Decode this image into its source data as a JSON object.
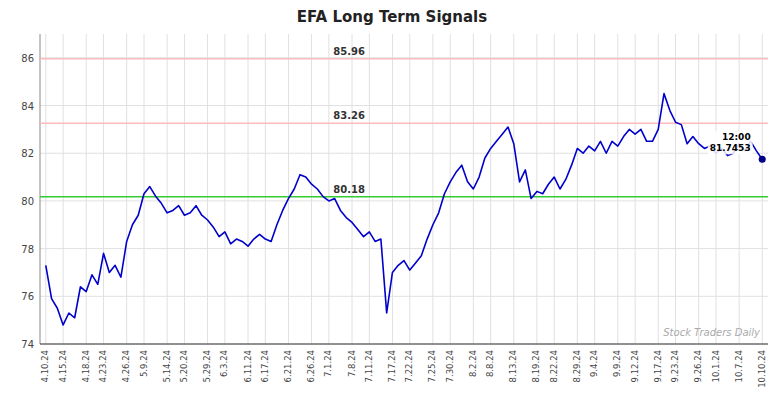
{
  "chart_data": {
    "type": "line",
    "title": "EFA Long Term Signals",
    "color": "#0000cc",
    "grid": true,
    "ylim": [
      74,
      87
    ],
    "yticks": [
      74,
      76,
      78,
      80,
      82,
      84,
      86
    ],
    "categories": [
      "4.10.24",
      null,
      null,
      "4.15.24",
      null,
      null,
      null,
      "4.18.24",
      null,
      null,
      "4.23.24",
      null,
      null,
      null,
      "4.26.24",
      null,
      null,
      "5.9.24",
      null,
      null,
      null,
      "5.14.24",
      null,
      null,
      "5.20.24",
      null,
      null,
      null,
      "5.29.24",
      null,
      null,
      "6.3.24",
      null,
      null,
      null,
      "6.11.24",
      null,
      null,
      "6.17.24",
      null,
      null,
      null,
      "6.21.24",
      null,
      null,
      null,
      "6.26.24",
      null,
      null,
      "7.1.24",
      null,
      null,
      null,
      "7.8.24",
      null,
      null,
      "7.11.24",
      null,
      null,
      null,
      "7.17.24",
      null,
      null,
      "7.22.24",
      null,
      null,
      null,
      "7.25.24",
      null,
      null,
      "7.30.24",
      null,
      null,
      null,
      "8.2.24",
      null,
      null,
      "8.8.24",
      null,
      null,
      null,
      "8.13.24",
      null,
      null,
      null,
      "8.19.24",
      null,
      null,
      "8.22.24",
      null,
      null,
      null,
      "8.29.24",
      null,
      null,
      "9.4.24",
      null,
      null,
      null,
      "9.9.24",
      null,
      null,
      "9.12.24",
      null,
      null,
      null,
      "9.17.24",
      null,
      null,
      "9.23.24",
      null,
      null,
      null,
      "9.26.24",
      null,
      null,
      "10.1.24",
      null,
      null,
      null,
      "10.7.24",
      null,
      null,
      null,
      "10.10.24"
    ],
    "values": [
      77.3,
      75.9,
      75.5,
      74.8,
      75.3,
      75.1,
      76.4,
      76.2,
      76.9,
      76.5,
      77.8,
      77.0,
      77.3,
      76.8,
      78.3,
      79.0,
      79.4,
      80.3,
      80.6,
      80.2,
      79.9,
      79.5,
      79.6,
      79.8,
      79.4,
      79.5,
      79.8,
      79.4,
      79.2,
      78.9,
      78.5,
      78.7,
      78.2,
      78.4,
      78.3,
      78.1,
      78.4,
      78.6,
      78.4,
      78.3,
      79.0,
      79.6,
      80.1,
      80.5,
      81.1,
      81.0,
      80.7,
      80.5,
      80.18,
      80.0,
      80.1,
      79.6,
      79.3,
      79.1,
      78.8,
      78.5,
      78.7,
      78.3,
      78.4,
      75.3,
      77.0,
      77.3,
      77.5,
      77.1,
      77.4,
      77.7,
      78.4,
      79.0,
      79.5,
      80.3,
      80.8,
      81.2,
      81.5,
      80.8,
      80.5,
      81.0,
      81.8,
      82.2,
      82.5,
      82.8,
      83.1,
      82.4,
      80.8,
      81.3,
      80.1,
      80.4,
      80.3,
      80.7,
      81.0,
      80.5,
      80.9,
      81.5,
      82.2,
      82.0,
      82.3,
      82.1,
      82.5,
      82.0,
      82.5,
      82.3,
      82.7,
      83.0,
      82.8,
      83.0,
      82.5,
      82.5,
      83.0,
      84.5,
      83.8,
      83.3,
      83.2,
      82.4,
      82.7,
      82.4,
      82.2,
      82.3,
      82.0,
      82.2,
      81.9,
      82.0,
      82.4,
      82.1,
      82.5,
      82.1,
      81.75
    ],
    "reference_lines": [
      {
        "value": 85.96,
        "label": "85.96",
        "color": "#ffbbbb"
      },
      {
        "value": 83.26,
        "label": "83.26",
        "color": "#ffbbbb"
      },
      {
        "value": 80.18,
        "label": "80.18",
        "color": "#33cc33"
      }
    ],
    "annotation": {
      "lines": [
        "12:00",
        "81.7453"
      ],
      "value": 81.7453
    },
    "watermark": "Stock Traders Daily"
  }
}
